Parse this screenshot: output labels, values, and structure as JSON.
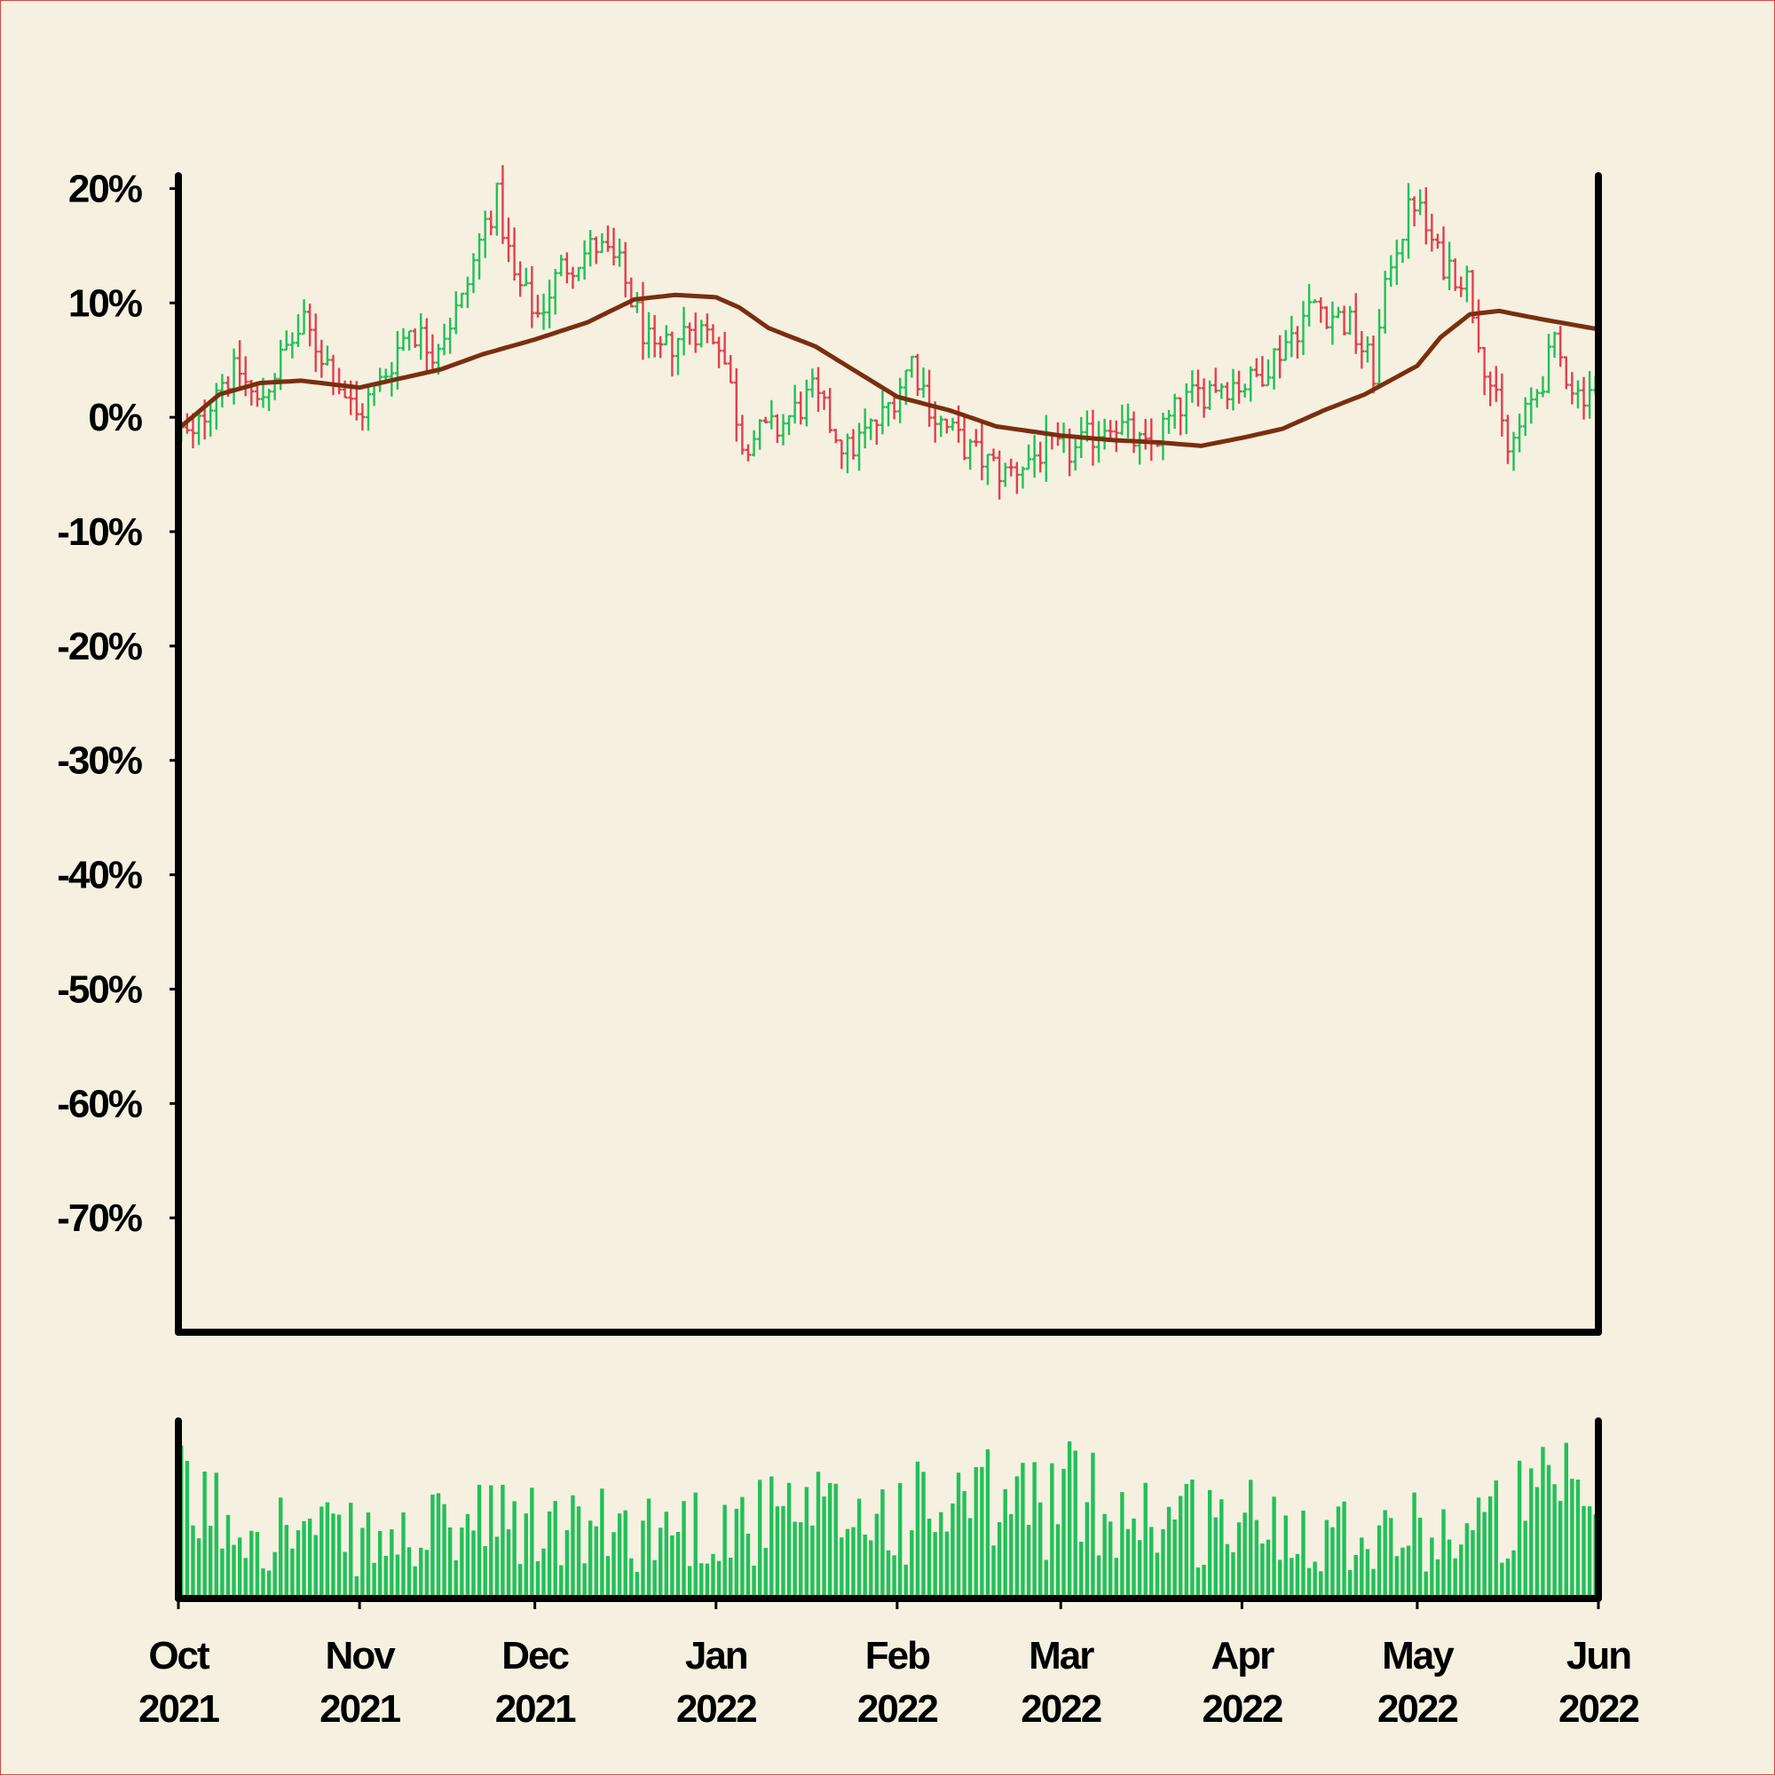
{
  "chart_data": {
    "type": "ohlc",
    "title": "",
    "xlabel": "",
    "ylabel": "",
    "ylim": [
      -80,
      20.5
    ],
    "y_ticks": [
      "20%",
      "10%",
      "0%",
      "-10%",
      "-20%",
      "-30%",
      "-40%",
      "-50%",
      "-60%",
      "-70%"
    ],
    "y_tick_values": [
      20,
      10,
      0,
      -10,
      -20,
      -30,
      -40,
      -50,
      -60,
      -70
    ],
    "x_range": [
      "2021-10-01",
      "2022-06-01"
    ],
    "x_ticks": [
      {
        "date": "2021-10-01",
        "month": "Oct",
        "year": "2021"
      },
      {
        "date": "2021-11-01",
        "month": "Nov",
        "year": "2021"
      },
      {
        "date": "2021-12-01",
        "month": "Dec",
        "year": "2021"
      },
      {
        "date": "2022-01-01",
        "month": "Jan",
        "year": "2022"
      },
      {
        "date": "2022-02-01",
        "month": "Feb",
        "year": "2022"
      },
      {
        "date": "2022-03-01",
        "month": "Mar",
        "year": "2022"
      },
      {
        "date": "2022-04-01",
        "month": "Apr",
        "year": "2022"
      },
      {
        "date": "2022-05-01",
        "month": "May",
        "year": "2022"
      },
      {
        "date": "2022-06-01",
        "month": "Jun",
        "year": "2022"
      }
    ],
    "price_path": [
      [
        "2021-10-01",
        -1
      ],
      [
        "2021-10-04",
        -2
      ],
      [
        "2021-10-08",
        3
      ],
      [
        "2021-10-12",
        4
      ],
      [
        "2021-10-15",
        1
      ],
      [
        "2021-10-20",
        6
      ],
      [
        "2021-10-23",
        8
      ],
      [
        "2021-10-28",
        4
      ],
      [
        "2021-11-01",
        0
      ],
      [
        "2021-11-05",
        3
      ],
      [
        "2021-11-10",
        8
      ],
      [
        "2021-11-14",
        6
      ],
      [
        "2021-11-19",
        10
      ],
      [
        "2021-11-23",
        17
      ],
      [
        "2021-11-25",
        19
      ],
      [
        "2021-11-28",
        12
      ],
      [
        "2021-12-02",
        9
      ],
      [
        "2021-12-06",
        13
      ],
      [
        "2021-12-12",
        15
      ],
      [
        "2021-12-16",
        13
      ],
      [
        "2021-12-22",
        5
      ],
      [
        "2021-12-28",
        8
      ],
      [
        "2022-01-02",
        7
      ],
      [
        "2022-01-06",
        -2
      ],
      [
        "2022-01-12",
        -1
      ],
      [
        "2022-01-18",
        2
      ],
      [
        "2022-01-24",
        -3
      ],
      [
        "2022-01-30",
        0
      ],
      [
        "2022-02-04",
        5
      ],
      [
        "2022-02-08",
        0
      ],
      [
        "2022-02-14",
        -3
      ],
      [
        "2022-02-20",
        -5
      ],
      [
        "2022-02-26",
        -3
      ],
      [
        "2022-03-04",
        -3
      ],
      [
        "2022-03-10",
        0
      ],
      [
        "2022-03-16",
        -3
      ],
      [
        "2022-03-22",
        1
      ],
      [
        "2022-03-28",
        3
      ],
      [
        "2022-04-03",
        3
      ],
      [
        "2022-04-08",
        6
      ],
      [
        "2022-04-14",
        10
      ],
      [
        "2022-04-20",
        8
      ],
      [
        "2022-04-24",
        4
      ],
      [
        "2022-04-27",
        14
      ],
      [
        "2022-05-01",
        19
      ],
      [
        "2022-05-05",
        14
      ],
      [
        "2022-05-10",
        12
      ],
      [
        "2022-05-13",
        5
      ],
      [
        "2022-05-17",
        -3
      ],
      [
        "2022-05-20",
        0
      ],
      [
        "2022-05-25",
        6
      ],
      [
        "2022-05-29",
        2
      ],
      [
        "2022-06-01",
        3
      ]
    ],
    "moving_average": [
      [
        "2021-10-01",
        -1
      ],
      [
        "2021-10-08",
        2
      ],
      [
        "2021-10-15",
        3
      ],
      [
        "2021-10-22",
        3.2
      ],
      [
        "2021-11-01",
        2.6
      ],
      [
        "2021-11-08",
        3.4
      ],
      [
        "2021-11-15",
        4.2
      ],
      [
        "2021-11-22",
        5.5
      ],
      [
        "2021-12-01",
        6.8
      ],
      [
        "2021-12-10",
        8.3
      ],
      [
        "2021-12-18",
        10.3
      ],
      [
        "2021-12-25",
        10.7
      ],
      [
        "2022-01-01",
        10.5
      ],
      [
        "2022-01-05",
        9.6
      ],
      [
        "2022-01-10",
        7.8
      ],
      [
        "2022-01-18",
        6.2
      ],
      [
        "2022-01-25",
        4.0
      ],
      [
        "2022-02-01",
        1.8
      ],
      [
        "2022-02-10",
        0.6
      ],
      [
        "2022-02-18",
        -0.8
      ],
      [
        "2022-03-01",
        -1.6
      ],
      [
        "2022-03-10",
        -2.0
      ],
      [
        "2022-03-18",
        -2.2
      ],
      [
        "2022-03-25",
        -2.5
      ],
      [
        "2022-04-01",
        -1.8
      ],
      [
        "2022-04-08",
        -1.0
      ],
      [
        "2022-04-15",
        0.6
      ],
      [
        "2022-04-22",
        2.0
      ],
      [
        "2022-05-01",
        4.5
      ],
      [
        "2022-05-05",
        7.0
      ],
      [
        "2022-05-10",
        9.0
      ],
      [
        "2022-05-15",
        9.3
      ],
      [
        "2022-05-22",
        8.6
      ],
      [
        "2022-06-01",
        7.7
      ]
    ],
    "volume_path": [
      [
        "2021-10-01",
        70
      ],
      [
        "2021-10-20",
        50
      ],
      [
        "2021-11-05",
        40
      ],
      [
        "2021-11-20",
        55
      ],
      [
        "2021-12-10",
        50
      ],
      [
        "2022-01-01",
        55
      ],
      [
        "2022-01-20",
        60
      ],
      [
        "2022-02-10",
        65
      ],
      [
        "2022-03-01",
        75
      ],
      [
        "2022-03-20",
        60
      ],
      [
        "2022-04-10",
        55
      ],
      [
        "2022-04-25",
        50
      ],
      [
        "2022-05-10",
        50
      ],
      [
        "2022-05-20",
        70
      ],
      [
        "2022-06-01",
        75
      ]
    ],
    "volume_max": 100,
    "colors": {
      "up": "#22c05a",
      "down": "#e0404e",
      "moving_average": "#7a2e10",
      "volume": "#22c05a",
      "axis": "#000000",
      "background": "#f6f0e0"
    },
    "grid": false,
    "legend": "none"
  }
}
